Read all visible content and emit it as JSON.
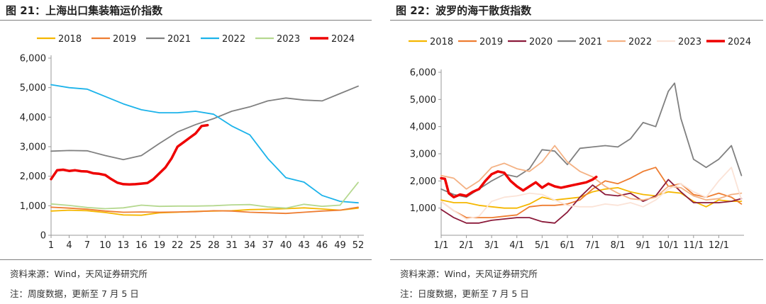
{
  "colors": {
    "2018": "#f5b700",
    "2019": "#ee7d31",
    "2020": "#8b1a3a",
    "2021": "#808080",
    "2022_left": "#1cb3ea",
    "2022_right": "#f4b183",
    "2023_left": "#b5d88f",
    "2023_right": "#fbe3d7",
    "2024": "#ee0000",
    "axis": "#999999"
  },
  "left": {
    "title": "图 21：上海出口集装箱运价指数",
    "source": "资料来源：Wind，天风证券研究所",
    "note": "注：周度数据，更新至 7 月 5 日"
  },
  "right": {
    "title": "图 22：波罗的海干散货指数",
    "source": "资料来源：Wind，天风证券研究所",
    "note": "注：日度数据，更新至 7 月 5 日"
  },
  "chart_data": [
    {
      "type": "line",
      "title": "上海出口集装箱运价指数",
      "xlabel": "",
      "ylabel": "",
      "ylim": [
        0,
        6000
      ],
      "yticks": [
        0,
        1000,
        2000,
        3000,
        4000,
        5000,
        6000
      ],
      "ytick_labels": [
        "0",
        "1,000",
        "2,000",
        "3,000",
        "4,000",
        "5,000",
        "6,000"
      ],
      "xlim": [
        1,
        52
      ],
      "xticks": [
        1,
        4,
        7,
        10,
        13,
        16,
        19,
        22,
        25,
        28,
        31,
        34,
        37,
        40,
        43,
        46,
        49,
        52
      ],
      "xtick_labels": [
        "1",
        "4",
        "7",
        "10",
        "13",
        "16",
        "19",
        "22",
        "25",
        "28",
        "31",
        "34",
        "37",
        "40",
        "43",
        "46",
        "49",
        "52"
      ],
      "legend_position": "top",
      "grid": false,
      "series": [
        {
          "name": "2018",
          "x": [
            1,
            4,
            7,
            10,
            13,
            16,
            19,
            22,
            25,
            28,
            31,
            34,
            37,
            40,
            43,
            46,
            49,
            52
          ],
          "values": [
            820,
            850,
            830,
            770,
            690,
            680,
            760,
            780,
            810,
            820,
            830,
            870,
            880,
            900,
            930,
            890,
            850,
            920
          ]
        },
        {
          "name": "2019",
          "x": [
            1,
            4,
            7,
            10,
            13,
            16,
            19,
            22,
            25,
            28,
            31,
            34,
            37,
            40,
            43,
            46,
            49,
            52
          ],
          "values": [
            950,
            920,
            880,
            820,
            780,
            790,
            780,
            790,
            800,
            830,
            820,
            780,
            760,
            740,
            780,
            820,
            850,
            950
          ]
        },
        {
          "name": "2021",
          "x": [
            1,
            4,
            7,
            10,
            13,
            16,
            19,
            22,
            25,
            28,
            31,
            34,
            37,
            40,
            43,
            46,
            49,
            52
          ],
          "values": [
            2850,
            2870,
            2860,
            2700,
            2560,
            2700,
            3110,
            3500,
            3750,
            3950,
            4200,
            4350,
            4550,
            4650,
            4580,
            4550,
            4800,
            5050
          ]
        },
        {
          "name": "2022",
          "x": [
            1,
            4,
            7,
            10,
            13,
            16,
            19,
            22,
            25,
            28,
            31,
            34,
            37,
            40,
            43,
            46,
            49,
            52
          ],
          "values": [
            5100,
            5000,
            4950,
            4700,
            4450,
            4250,
            4150,
            4150,
            4200,
            4100,
            3700,
            3400,
            2600,
            1950,
            1800,
            1350,
            1150,
            1100
          ]
        },
        {
          "name": "2023",
          "x": [
            1,
            4,
            7,
            10,
            13,
            16,
            19,
            22,
            25,
            28,
            31,
            34,
            37,
            40,
            43,
            46,
            49,
            52
          ],
          "values": [
            1060,
            1010,
            940,
            900,
            930,
            1020,
            980,
            990,
            990,
            1000,
            1030,
            1040,
            960,
            920,
            1050,
            980,
            1020,
            1790
          ]
        },
        {
          "name": "2024",
          "x": [
            1,
            2,
            3,
            4,
            5,
            6,
            7,
            8,
            9,
            10,
            11,
            12,
            13,
            14,
            15,
            16,
            17,
            18,
            19,
            20,
            21,
            22,
            23,
            24,
            25,
            26,
            27
          ],
          "values": [
            1900,
            2200,
            2220,
            2180,
            2200,
            2170,
            2160,
            2100,
            2080,
            2040,
            1900,
            1780,
            1730,
            1720,
            1730,
            1750,
            1770,
            1900,
            2100,
            2300,
            2600,
            3000,
            3150,
            3300,
            3450,
            3700,
            3730
          ]
        }
      ]
    },
    {
      "type": "line",
      "title": "波罗的海干散货指数",
      "xlabel": "",
      "ylabel": "",
      "ylim": [
        0,
        6000
      ],
      "yticks": [
        1000,
        2000,
        3000,
        4000,
        5000,
        6000
      ],
      "ytick_labels": [
        "1,000",
        "2,000",
        "3,000",
        "4,000",
        "5,000",
        "6,000"
      ],
      "xlim": [
        1,
        13
      ],
      "xticks": [
        1,
        2,
        3,
        4,
        5,
        6,
        7,
        8,
        9,
        10,
        11,
        12
      ],
      "xtick_labels": [
        "1/1",
        "2/1",
        "3/1",
        "4/1",
        "5/1",
        "6/1",
        "7/1",
        "8/1",
        "9/1",
        "10/1",
        "11/1",
        "12/1"
      ],
      "legend_position": "top",
      "grid": false,
      "series": [
        {
          "name": "2018",
          "x": [
            1,
            1.5,
            2,
            2.5,
            3,
            3.5,
            4,
            4.5,
            5,
            5.5,
            6,
            6.5,
            7,
            7.5,
            8,
            8.5,
            9,
            9.5,
            10,
            10.5,
            11,
            11.5,
            12,
            12.5,
            12.9
          ],
          "values": [
            1300,
            1200,
            1200,
            1100,
            1050,
            1000,
            1000,
            1150,
            1400,
            1300,
            1350,
            1400,
            1600,
            1700,
            1750,
            1600,
            1500,
            1450,
            1600,
            1550,
            1250,
            1050,
            1300,
            1250,
            1250
          ]
        },
        {
          "name": "2019",
          "x": [
            1,
            1.5,
            2,
            2.5,
            3,
            3.5,
            4,
            4.5,
            5,
            5.5,
            6,
            6.5,
            7,
            7.5,
            8,
            8.5,
            9,
            9.5,
            10,
            10.5,
            11,
            11.5,
            12,
            12.5,
            12.9
          ],
          "values": [
            1250,
            900,
            650,
            650,
            650,
            700,
            750,
            1050,
            1100,
            1100,
            1150,
            1300,
            1700,
            2000,
            1900,
            2100,
            2350,
            2500,
            1800,
            1900,
            1500,
            1400,
            1550,
            1400,
            1150
          ]
        },
        {
          "name": "2020",
          "x": [
            1,
            1.5,
            2,
            2.5,
            3,
            3.5,
            4,
            4.5,
            5,
            5.5,
            6,
            6.5,
            7,
            7.5,
            8,
            8.5,
            9,
            9.5,
            10,
            10.5,
            11,
            11.5,
            12,
            12.5,
            12.9
          ],
          "values": [
            950,
            650,
            450,
            450,
            550,
            600,
            650,
            650,
            500,
            450,
            850,
            1400,
            1850,
            1500,
            1450,
            1550,
            1250,
            1450,
            2050,
            1600,
            1200,
            1200,
            1200,
            1250,
            1350
          ]
        },
        {
          "name": "2021",
          "x": [
            1,
            1.5,
            2,
            2.5,
            3,
            3.5,
            4,
            4.5,
            5,
            5.5,
            6,
            6.5,
            7,
            7.5,
            8,
            8.5,
            9,
            9.5,
            10,
            10.25,
            10.5,
            11,
            11.5,
            12,
            12.5,
            12.9
          ],
          "values": [
            1700,
            1500,
            1400,
            1700,
            2000,
            2250,
            2150,
            2450,
            3150,
            3100,
            2600,
            3200,
            3250,
            3300,
            3250,
            3550,
            4150,
            4000,
            5300,
            5600,
            4300,
            2800,
            2500,
            2800,
            3300,
            2200
          ]
        },
        {
          "name": "2022",
          "x": [
            1,
            1.5,
            2,
            2.5,
            3,
            3.5,
            4,
            4.5,
            5,
            5.5,
            6,
            6.5,
            7,
            7.5,
            8,
            8.5,
            9,
            9.5,
            10,
            10.5,
            11,
            11.5,
            12,
            12.5,
            12.9
          ],
          "values": [
            2200,
            2100,
            1700,
            2000,
            2500,
            2650,
            2450,
            2350,
            2700,
            3300,
            2700,
            2350,
            2150,
            1800,
            1550,
            1350,
            1300,
            1400,
            1800,
            1750,
            1450,
            1300,
            1350,
            1500,
            1550
          ]
        },
        {
          "name": "2023",
          "x": [
            1,
            1.5,
            2,
            2.5,
            3,
            3.5,
            4,
            4.5,
            5,
            5.5,
            6,
            6.5,
            7,
            7.5,
            8,
            8.5,
            9,
            9.5,
            10,
            10.5,
            11,
            11.5,
            12,
            12.5,
            12.9
          ],
          "values": [
            1250,
            900,
            600,
            700,
            1250,
            1400,
            1450,
            1550,
            1500,
            1300,
            1100,
            1050,
            1050,
            1150,
            1100,
            1200,
            1050,
            1300,
            1700,
            1900,
            1600,
            1400,
            2000,
            2500,
            1300
          ]
        },
        {
          "name": "2024",
          "x": [
            1,
            1.15,
            1.3,
            1.5,
            1.75,
            2,
            2.25,
            2.5,
            2.75,
            3,
            3.25,
            3.5,
            3.75,
            4,
            4.25,
            4.5,
            4.75,
            5,
            5.25,
            5.5,
            5.75,
            6,
            6.25,
            6.5,
            6.75,
            7,
            7.15
          ],
          "values": [
            2100,
            2080,
            1550,
            1400,
            1500,
            1450,
            1600,
            1700,
            2000,
            2250,
            2350,
            2300,
            2000,
            1800,
            1650,
            1800,
            1950,
            1750,
            1900,
            1800,
            1750,
            1800,
            1850,
            1900,
            1950,
            2050,
            2150
          ]
        }
      ]
    }
  ]
}
